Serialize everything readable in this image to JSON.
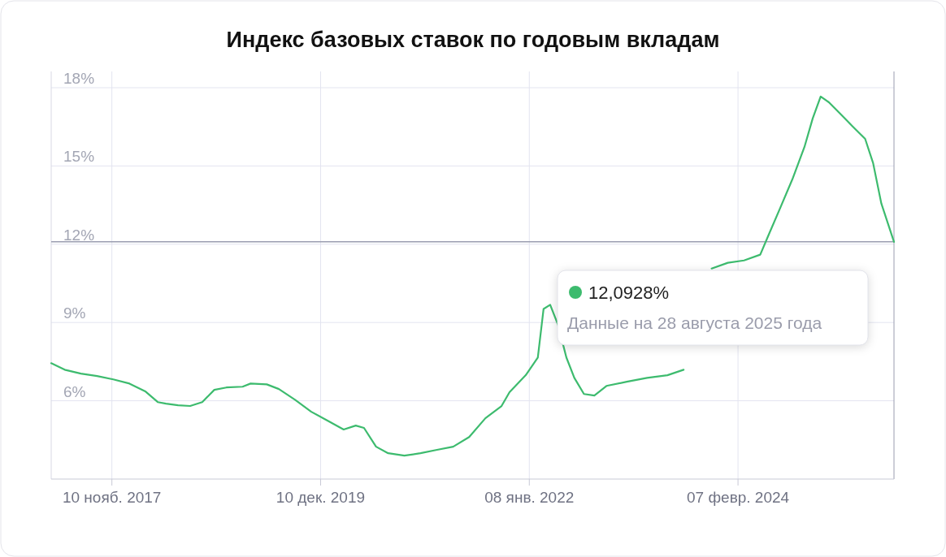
{
  "chart_data": {
    "type": "line",
    "title": "Индекс базовых ставок по годовым вкладам",
    "x": [
      "2017-04-03",
      "2017-05-22",
      "2017-07-20",
      "2017-09-17",
      "2017-11-15",
      "2018-01-13",
      "2018-03-13",
      "2018-04-26",
      "2018-05-26",
      "2018-07-09",
      "2018-08-22",
      "2018-10-05",
      "2018-11-18",
      "2019-01-01",
      "2019-03-01",
      "2019-03-30",
      "2019-05-28",
      "2019-07-11",
      "2019-09-08",
      "2019-11-06",
      "2020-01-04",
      "2020-03-03",
      "2020-04-16",
      "2020-05-16",
      "2020-06-29",
      "2020-08-12",
      "2020-10-10",
      "2020-12-08",
      "2021-02-06",
      "2021-04-06",
      "2021-06-03",
      "2021-08-01",
      "2021-09-29",
      "2021-10-28",
      "2021-12-26",
      "2022-02-08",
      "2022-03-01",
      "2022-03-25",
      "2022-04-23",
      "2022-05-23",
      "2022-06-21",
      "2022-07-26",
      "2022-09-02",
      "2022-10-16",
      "2022-12-29",
      "2023-03-13",
      "2023-05-26",
      "2023-07-24",
      "2023-08-22",
      "2023-09-20",
      "2023-11-03",
      "2024-01-01",
      "2024-02-29",
      "2024-04-28",
      "2024-05-27",
      "2024-07-10",
      "2024-08-23",
      "2024-10-06",
      "2024-11-05",
      "2024-12-04",
      "2025-01-03",
      "2025-02-16",
      "2025-04-01",
      "2025-05-15",
      "2025-06-13",
      "2025-07-13",
      "2025-08-28"
    ],
    "series": [
      {
        "color": "#3dbb6e",
        "values": [
          7.44,
          7.19,
          7.04,
          6.95,
          6.82,
          6.66,
          6.35,
          5.95,
          5.89,
          5.83,
          5.8,
          5.95,
          6.42,
          6.51,
          6.54,
          6.66,
          6.63,
          6.45,
          6.04,
          5.58,
          5.24,
          4.9,
          5.05,
          4.96,
          4.24,
          3.99,
          3.9,
          3.99,
          4.12,
          4.24,
          4.61,
          5.33,
          5.8,
          6.33,
          6.98,
          7.66,
          9.52,
          9.68,
          8.9,
          7.66,
          6.88,
          6.26,
          6.2,
          6.57,
          6.73,
          6.88,
          6.98,
          7.19,
          null,
          null,
          11.07,
          11.29,
          11.38,
          11.6,
          12.32,
          13.4,
          14.49,
          15.73,
          16.82,
          17.66,
          17.44,
          16.97,
          16.5,
          16.04,
          15.11,
          13.56,
          12.09
        ]
      }
    ],
    "xlim": [
      "2017-04-03",
      "2025-08-28"
    ],
    "xticks": [
      {
        "value": "2017-11-10",
        "label": "10 нояб. 2017"
      },
      {
        "value": "2019-12-10",
        "label": "10 дек. 2019"
      },
      {
        "value": "2022-01-08",
        "label": "08 янв. 2022"
      },
      {
        "value": "2024-02-07",
        "label": "07 февр. 2024"
      }
    ],
    "ylim": [
      3,
      18
    ],
    "yticks": [
      {
        "value": 6,
        "label": "6%"
      },
      {
        "value": 9,
        "label": "9%"
      },
      {
        "value": 12,
        "label": "12%"
      },
      {
        "value": 15,
        "label": "15%"
      },
      {
        "value": 18,
        "label": "18%"
      }
    ],
    "grid": true,
    "ref_lines": [
      {
        "axis": "y",
        "value": 12.0928,
        "color": "#9a9db0"
      }
    ],
    "annotations": [
      "12,0928%",
      "Данные на 28 августа 2025 года"
    ]
  }
}
